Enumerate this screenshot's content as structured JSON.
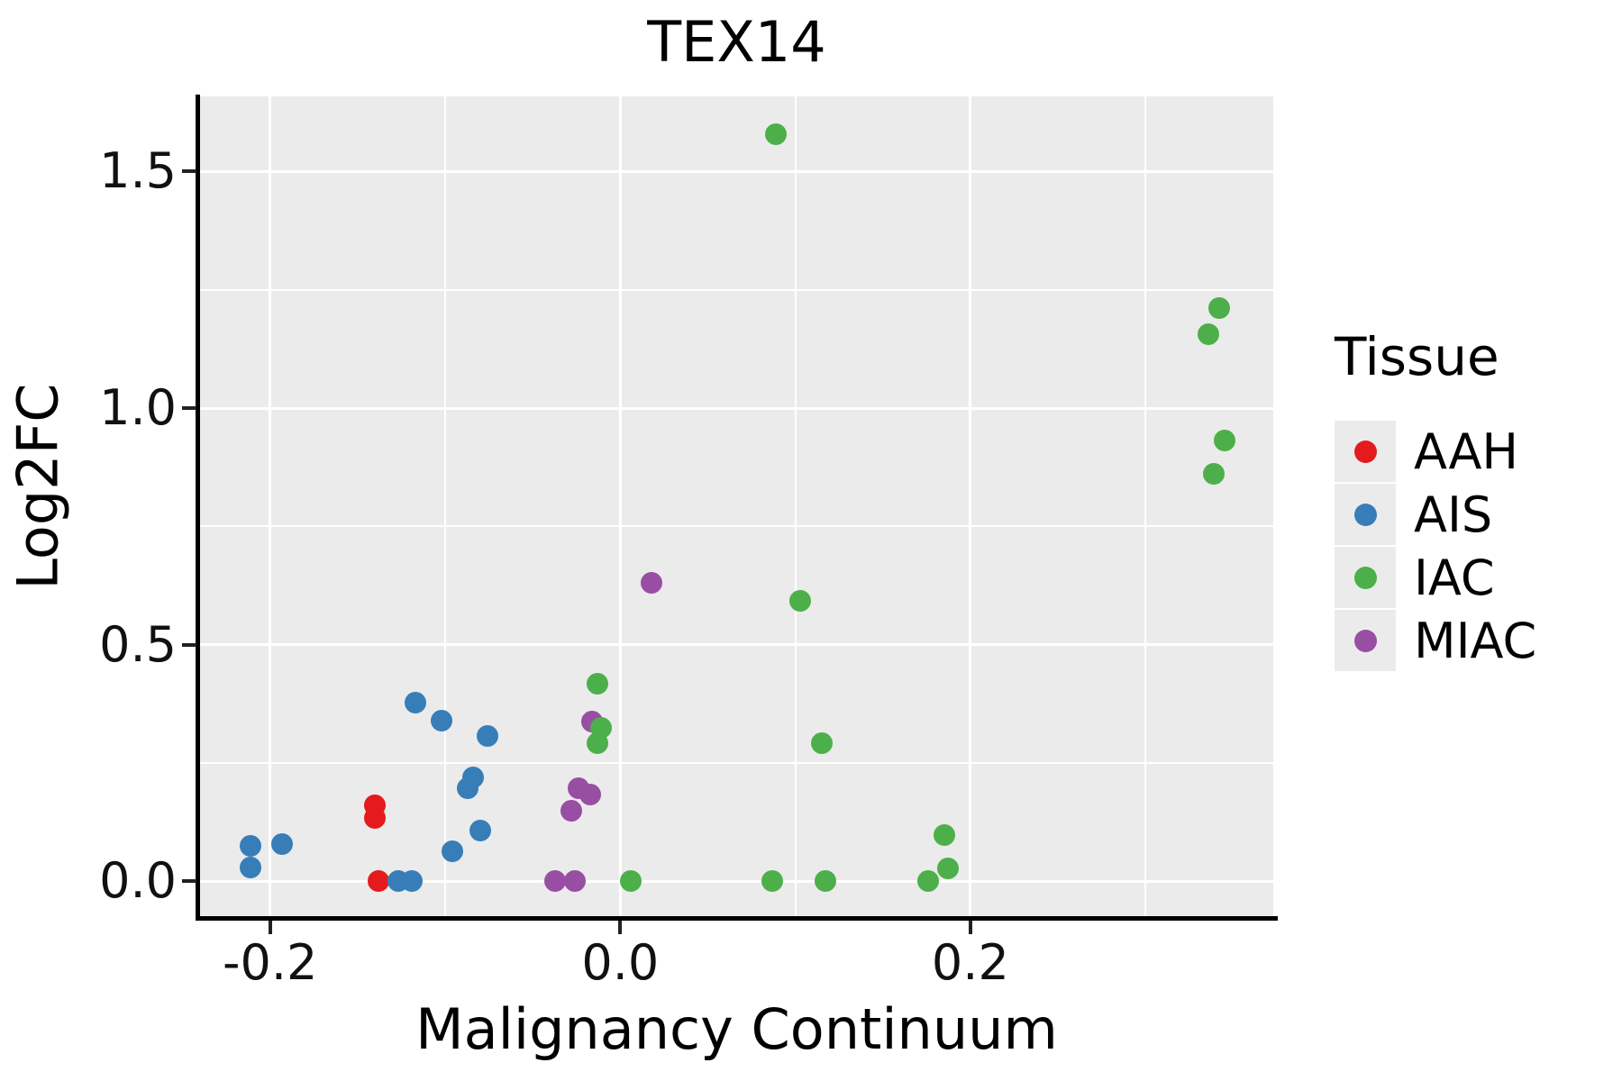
{
  "title": "TEX14",
  "x_axis": {
    "label": "Malignancy Continuum",
    "ticks": [
      {
        "value": -0.2,
        "label": "-0.2"
      },
      {
        "value": 0.0,
        "label": "0.0"
      },
      {
        "value": 0.2,
        "label": "0.2"
      }
    ]
  },
  "y_axis": {
    "label": "Log2FC",
    "ticks": [
      {
        "value": 0.0,
        "label": "0.0"
      },
      {
        "value": 0.5,
        "label": "0.5"
      },
      {
        "value": 1.0,
        "label": "1.0"
      },
      {
        "value": 1.5,
        "label": "1.5"
      }
    ]
  },
  "legend": {
    "title": "Tissue",
    "position": "right",
    "items": [
      {
        "label": "AAH",
        "color": "#E41A1C"
      },
      {
        "label": "AIS",
        "color": "#377EB8"
      },
      {
        "label": "IAC",
        "color": "#4DAF4A"
      },
      {
        "label": "MIAC",
        "color": "#984EA3"
      }
    ]
  },
  "colors": {
    "panel_background": "#EBEBEB",
    "gridline": "#FFFFFF",
    "axis_line": "#000000",
    "aah": "#E41A1C",
    "ais": "#377EB8",
    "iac": "#4DAF4A",
    "miac": "#984EA3"
  },
  "chart_data": {
    "type": "scatter",
    "title": "TEX14",
    "xlabel": "Malignancy Continuum",
    "ylabel": "Log2FC",
    "xlim": [
      -0.24,
      0.373
    ],
    "ylim": [
      -0.074,
      1.659
    ],
    "x_major": [
      -0.2,
      0.0,
      0.2
    ],
    "x_minor": [
      -0.1,
      0.1,
      0.3
    ],
    "y_major": [
      0.0,
      0.5,
      1.0,
      1.5
    ],
    "y_minor": [
      0.25,
      0.75,
      1.25
    ],
    "grid": true,
    "legend_position": "right",
    "series": [
      {
        "name": "AAH",
        "color": "#E41A1C",
        "points": [
          [
            -0.14,
            0.16
          ],
          [
            -0.14,
            0.133
          ],
          [
            -0.138,
            0.0
          ]
        ]
      },
      {
        "name": "AIS",
        "color": "#377EB8",
        "points": [
          [
            -0.211,
            0.074
          ],
          [
            -0.193,
            0.078
          ],
          [
            -0.211,
            0.029
          ],
          [
            -0.117,
            0.377
          ],
          [
            -0.102,
            0.34
          ],
          [
            -0.076,
            0.307
          ],
          [
            -0.084,
            0.22
          ],
          [
            -0.087,
            0.196
          ],
          [
            -0.08,
            0.106
          ],
          [
            -0.096,
            0.064
          ],
          [
            -0.127,
            0.0
          ],
          [
            -0.119,
            0.0
          ]
        ]
      },
      {
        "name": "MIAC",
        "color": "#984EA3",
        "points": [
          [
            0.018,
            0.63
          ],
          [
            -0.016,
            0.338
          ],
          [
            -0.024,
            0.196
          ],
          [
            -0.017,
            0.183
          ],
          [
            -0.028,
            0.149
          ],
          [
            -0.037,
            0.0
          ],
          [
            -0.026,
            0.0
          ]
        ]
      },
      {
        "name": "IAC",
        "color": "#4DAF4A",
        "points": [
          [
            0.089,
            1.579
          ],
          [
            0.342,
            1.211
          ],
          [
            0.336,
            1.157
          ],
          [
            0.345,
            0.932
          ],
          [
            0.339,
            0.861
          ],
          [
            0.103,
            0.592
          ],
          [
            0.115,
            0.291
          ],
          [
            -0.013,
            0.417
          ],
          [
            -0.011,
            0.324
          ],
          [
            -0.013,
            0.291
          ],
          [
            0.006,
            0.0
          ],
          [
            0.087,
            0.0
          ],
          [
            0.117,
            0.0
          ],
          [
            0.176,
            0.0
          ],
          [
            0.187,
            0.026
          ],
          [
            0.185,
            0.097
          ]
        ]
      }
    ]
  }
}
